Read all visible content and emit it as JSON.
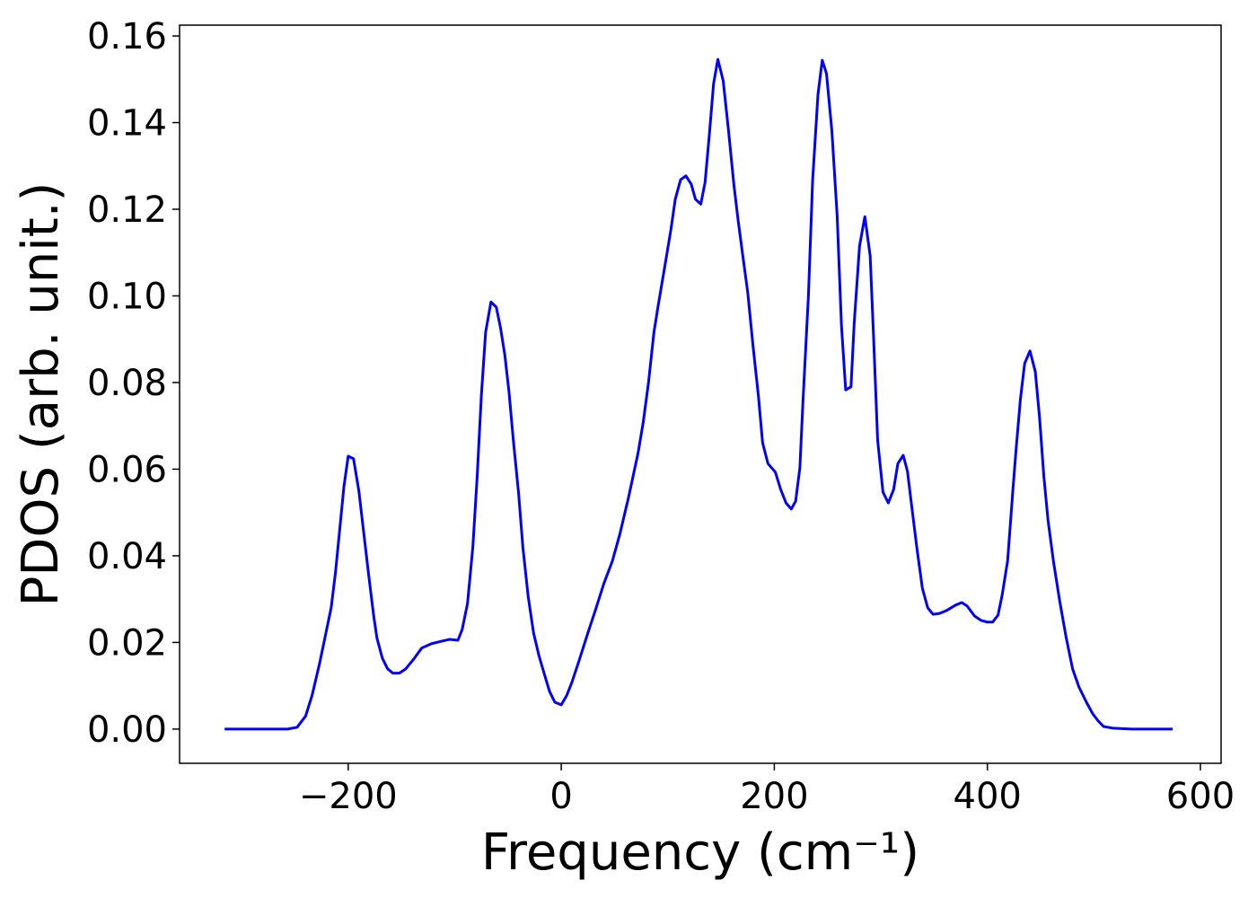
{
  "chart_data": {
    "type": "line",
    "xlabel": "Frequency (cm⁻¹)",
    "ylabel": "PDOS (arb. unit.)",
    "xlim": [
      -358.3,
      619.4
    ],
    "ylim": [
      -0.0079,
      0.1625
    ],
    "xticks": [
      {
        "value": -200,
        "label": "−200"
      },
      0,
      200,
      400,
      600
    ],
    "yticks": [
      {
        "value": 0,
        "label": "0.00"
      },
      {
        "value": 0.02,
        "label": "0.02"
      },
      {
        "value": 0.04,
        "label": "0.04"
      },
      {
        "value": 0.06,
        "label": "0.06"
      },
      {
        "value": 0.08,
        "label": "0.08"
      },
      {
        "value": 0.1,
        "label": "0.10"
      },
      {
        "value": 0.12,
        "label": "0.12"
      },
      {
        "value": 0.14,
        "label": "0.14"
      },
      {
        "value": 0.16,
        "label": "0.16"
      }
    ],
    "grid": false,
    "series": [
      {
        "color": "#0000ff",
        "x": [
          -316,
          -257,
          -248,
          -240,
          -234,
          -227,
          -216,
          -212,
          -204,
          -200,
          -195,
          -190,
          -181,
          -176,
          -173,
          -168,
          -163,
          -158,
          -152,
          -146,
          -139,
          -131,
          -122,
          -112,
          -105,
          -97,
          -93,
          -88,
          -83,
          -79,
          -75,
          -71,
          -66,
          -61,
          -57,
          -53,
          -49,
          -45,
          -40,
          -36,
          -31,
          -26,
          -21,
          -16,
          -11,
          -6,
          0,
          5,
          10,
          17,
          25,
          32,
          40,
          48,
          55,
          63,
          72,
          77,
          82,
          87,
          91,
          97,
          103,
          107,
          112,
          117,
          122,
          126,
          131,
          135,
          139,
          143,
          147,
          152,
          157,
          162,
          166,
          171,
          175,
          180,
          185,
          189,
          194,
          201,
          206,
          211,
          216,
          220,
          224,
          227,
          232,
          236,
          241,
          245,
          249,
          254,
          259,
          263,
          267,
          272,
          275,
          280,
          285,
          290,
          293,
          297,
          302,
          307,
          312,
          316,
          321,
          325,
          329,
          334,
          339,
          344,
          349,
          355,
          362,
          370,
          376,
          381,
          388,
          394,
          400,
          405,
          410,
          414,
          419,
          424,
          427,
          431,
          435,
          440,
          445,
          449,
          453,
          457,
          462,
          468,
          474,
          480,
          486,
          493,
          499,
          504,
          509,
          518,
          535,
          574
        ],
        "values": [
          0,
          0,
          0.0004,
          0.003,
          0.0077,
          0.015,
          0.028,
          0.036,
          0.056,
          0.063,
          0.0624,
          0.055,
          0.036,
          0.026,
          0.021,
          0.0164,
          0.0139,
          0.0129,
          0.0129,
          0.0139,
          0.016,
          0.0187,
          0.0197,
          0.0203,
          0.0207,
          0.0205,
          0.023,
          0.029,
          0.042,
          0.058,
          0.077,
          0.0916,
          0.0986,
          0.0974,
          0.0926,
          0.0864,
          0.0777,
          0.0667,
          0.0543,
          0.0419,
          0.0305,
          0.0222,
          0.017,
          0.0128,
          0.0087,
          0.0062,
          0.0056,
          0.0077,
          0.0108,
          0.016,
          0.0222,
          0.0274,
          0.0336,
          0.0388,
          0.045,
          0.0533,
          0.0636,
          0.0709,
          0.0802,
          0.0916,
          0.0978,
          0.1065,
          0.1154,
          0.1223,
          0.1268,
          0.1277,
          0.1258,
          0.1223,
          0.1212,
          0.1262,
          0.1372,
          0.149,
          0.1546,
          0.1497,
          0.1382,
          0.1258,
          0.1175,
          0.1082,
          0.1009,
          0.0885,
          0.0771,
          0.0661,
          0.0613,
          0.0593,
          0.0553,
          0.0522,
          0.0508,
          0.0526,
          0.0603,
          0.0761,
          0.0999,
          0.1268,
          0.1465,
          0.1544,
          0.1513,
          0.1382,
          0.1185,
          0.0933,
          0.0783,
          0.079,
          0.0937,
          0.1115,
          0.1183,
          0.1092,
          0.0916,
          0.0667,
          0.0547,
          0.0522,
          0.0553,
          0.0613,
          0.0632,
          0.0595,
          0.0514,
          0.0415,
          0.0325,
          0.028,
          0.0265,
          0.0267,
          0.0274,
          0.0286,
          0.0292,
          0.0284,
          0.0261,
          0.0251,
          0.0247,
          0.0247,
          0.0263,
          0.0311,
          0.0388,
          0.0553,
          0.0647,
          0.0761,
          0.0844,
          0.0873,
          0.0825,
          0.0719,
          0.0584,
          0.0481,
          0.0388,
          0.0294,
          0.0211,
          0.0139,
          0.0097,
          0.0062,
          0.0035,
          0.0019,
          0.0006,
          0.0002,
          0,
          0
        ]
      }
    ]
  }
}
